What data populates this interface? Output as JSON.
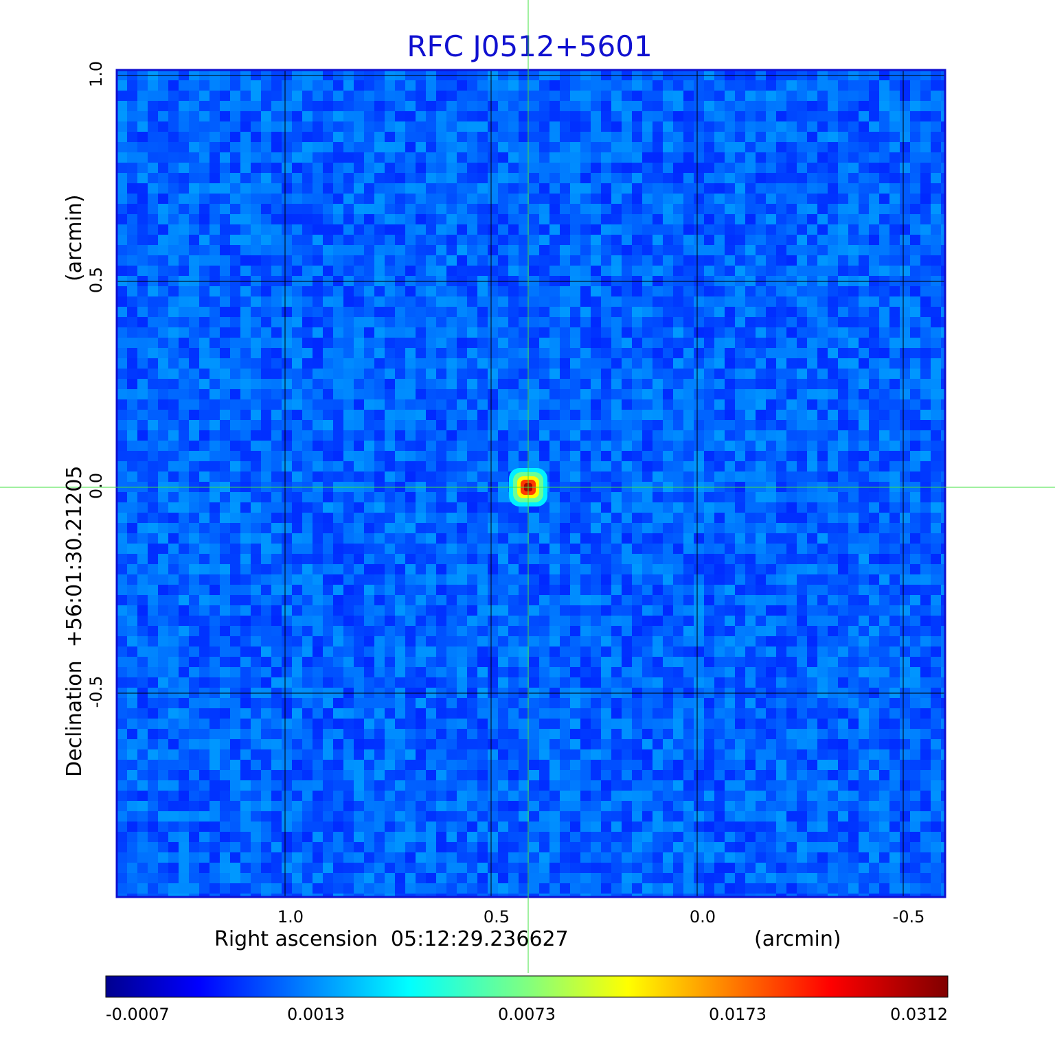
{
  "chart_data": {
    "type": "heatmap",
    "title": "RFC J0512+5601",
    "xlabel": "Right ascension  05:12:29.236627",
    "xunit": "(arcmin)",
    "ylabel": "Declination  +56:01:30.21205",
    "yunit": "(arcmin)",
    "x_ticks": [
      1.0,
      0.5,
      0.0,
      -0.5
    ],
    "x_tick_labels": [
      "1.0",
      "0.5",
      "0.0",
      "-0.5"
    ],
    "y_ticks": [
      1.0,
      0.5,
      0.0,
      -0.5
    ],
    "y_tick_labels": [
      "1.0",
      "0.5",
      "0.0",
      "-0.5"
    ],
    "xlim": [
      1.41,
      -0.6
    ],
    "ylim": [
      -1.0,
      1.0
    ],
    "grid": true,
    "crosshair": {
      "x": 0.41,
      "y": 0.0,
      "color": "#40e040"
    },
    "source_peak": {
      "ra_offset_arcmin": 0.41,
      "dec_offset_arcmin": 0.0,
      "value": 0.0312
    },
    "background_level": -0.0002,
    "colorbar": {
      "colormap": "jet",
      "tick_values": [
        -0.0007,
        0.0013,
        0.0073,
        0.0173,
        0.0312
      ],
      "tick_labels": [
        "-0.0007",
        "0.0013",
        "0.0073",
        "0.0173",
        "0.0312"
      ]
    },
    "colors": {
      "title": "#1010d0",
      "frame": "#1010d0",
      "grid": "#000000",
      "crosshair": "#40e040"
    }
  }
}
